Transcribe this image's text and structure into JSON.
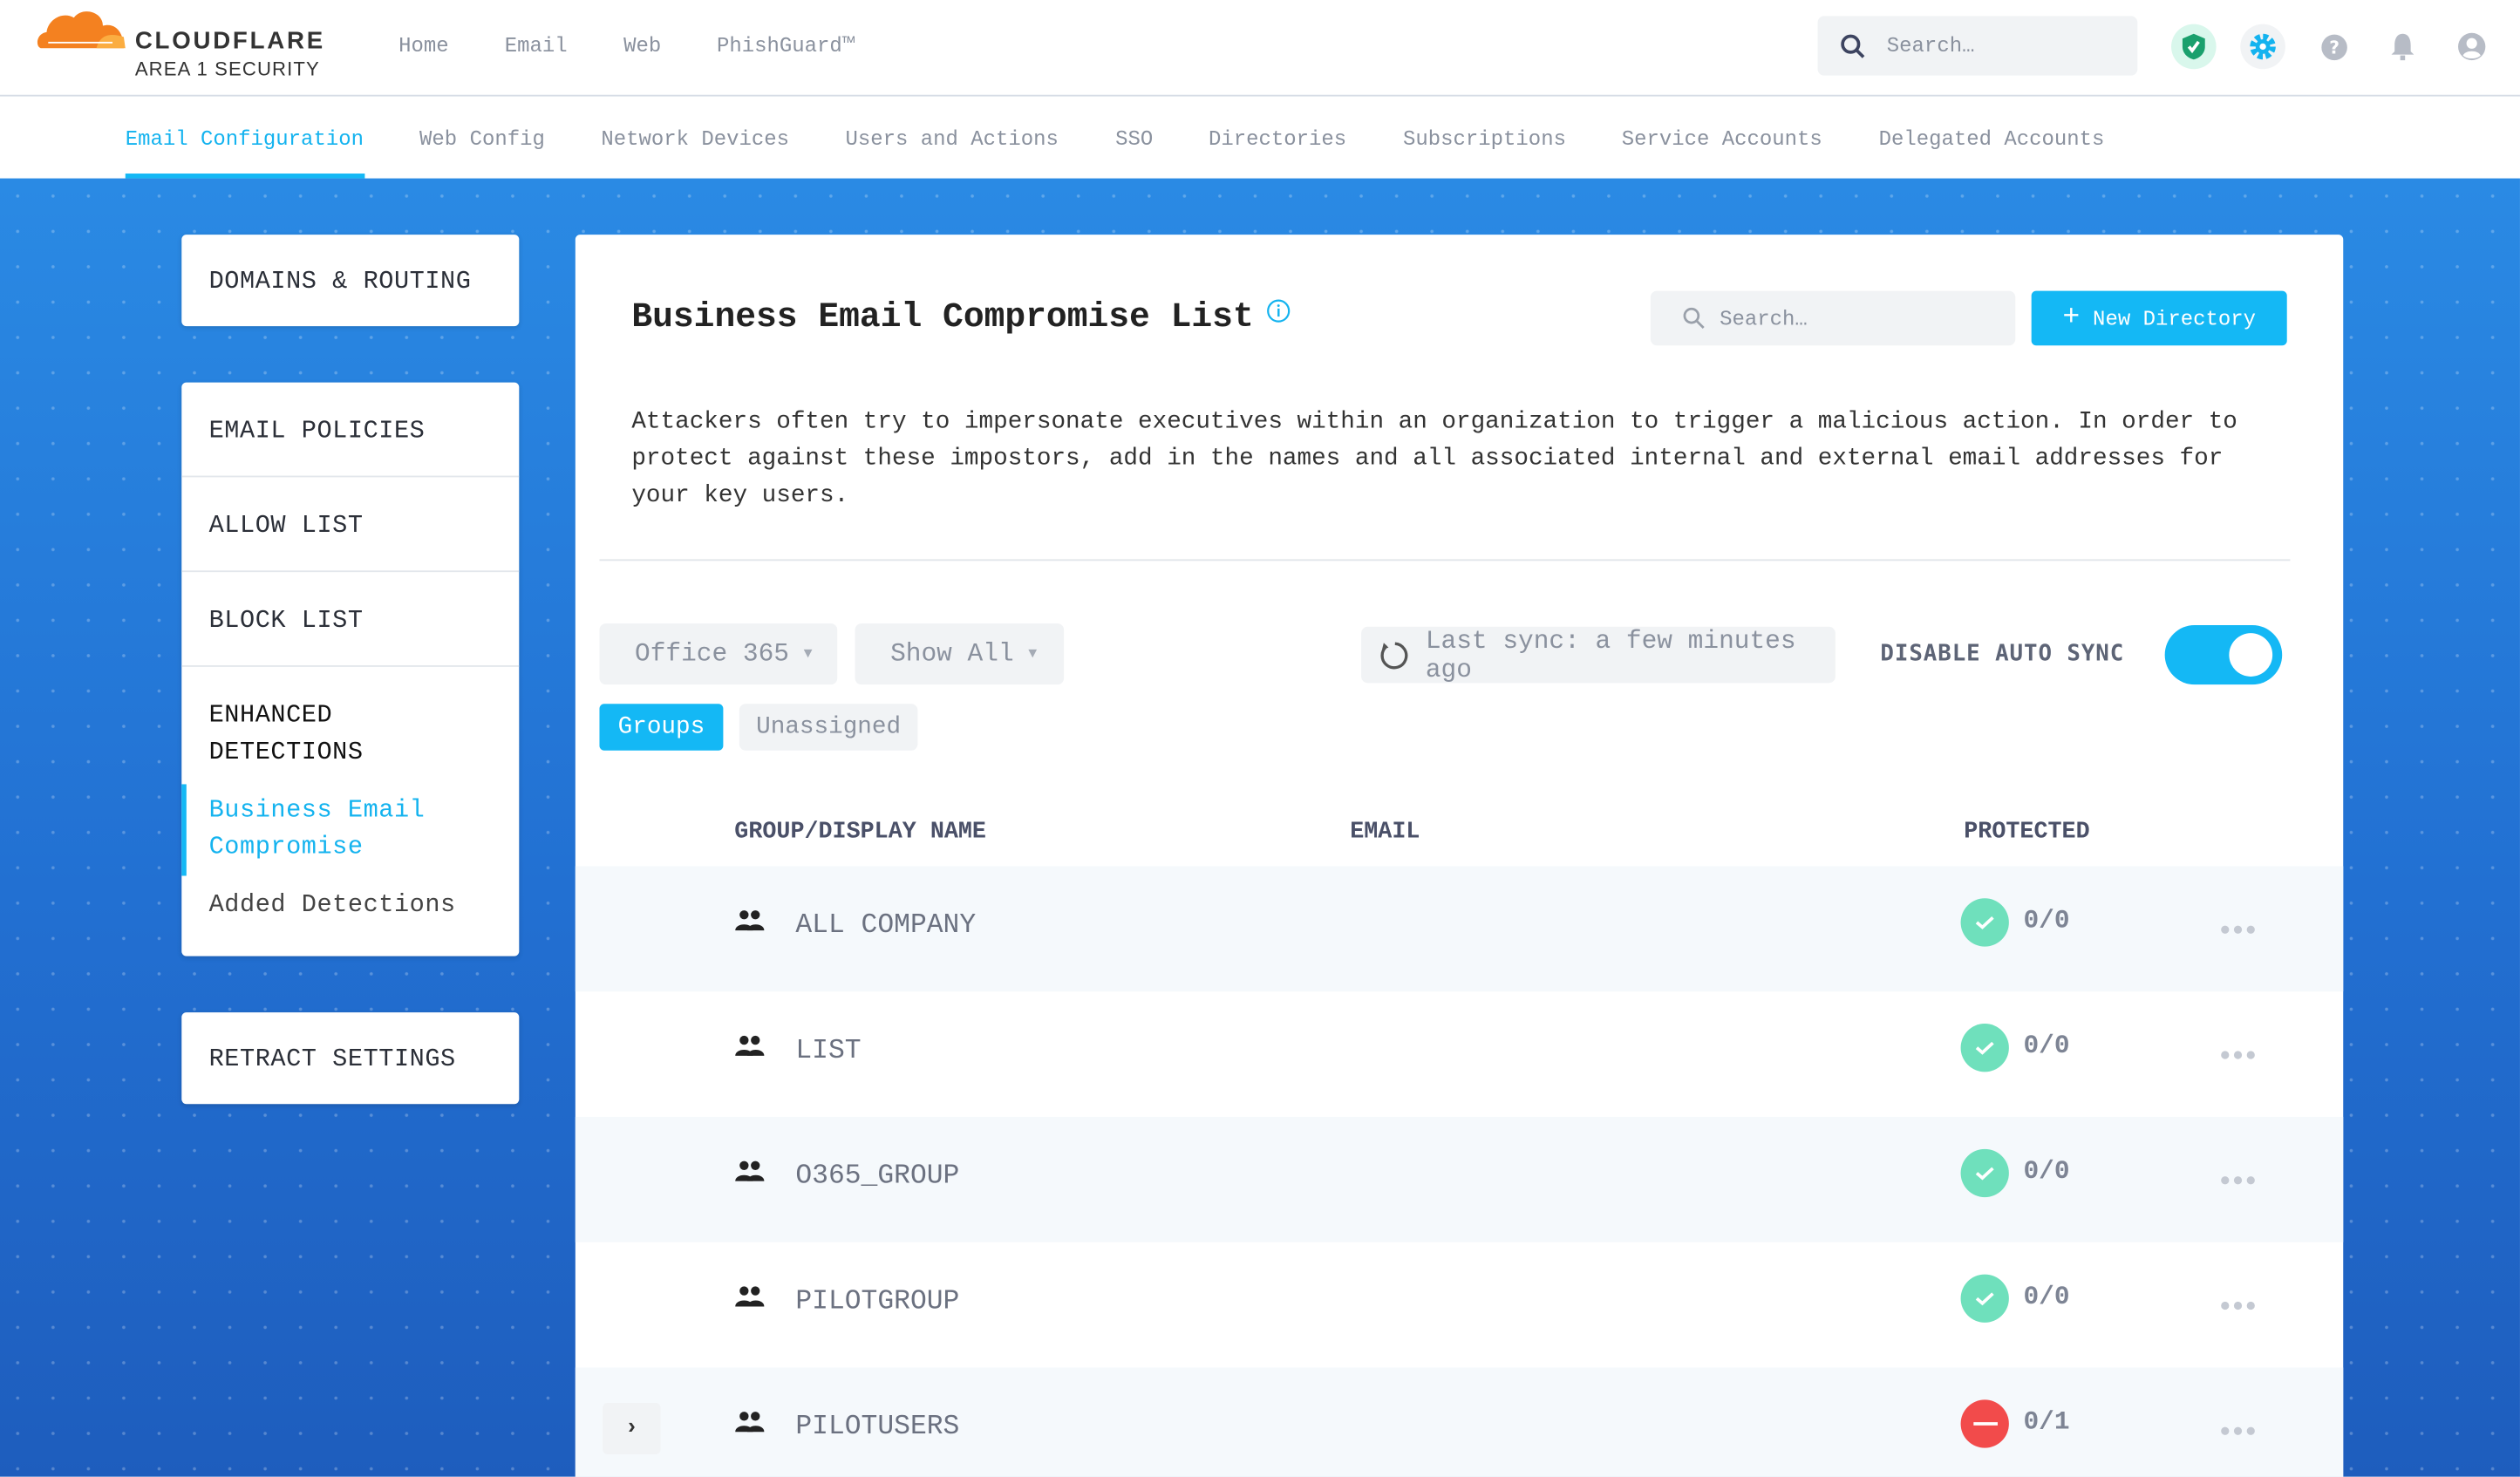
{
  "brand": {
    "name": "CLOUDFLARE",
    "sub": "AREA 1 SECURITY",
    "orange": "#f48120"
  },
  "topnav": [
    "Home",
    "Email",
    "Web",
    "PhishGuard™"
  ],
  "top_search": {
    "placeholder": "Search…"
  },
  "top_icons": [
    "shield-check-icon",
    "gear-icon",
    "help-icon",
    "bell-icon",
    "user-icon"
  ],
  "subnav": {
    "items": [
      "Email Configuration",
      "Web Config",
      "Network Devices",
      "Users and Actions",
      "SSO",
      "Directories",
      "Subscriptions",
      "Service Accounts",
      "Delegated Accounts"
    ],
    "active": 0
  },
  "sidebar": {
    "domains": "DOMAINS & ROUTING",
    "email_policies": "EMAIL POLICIES",
    "allow_list": "ALLOW LIST",
    "block_list": "BLOCK LIST",
    "enhanced_1": "ENHANCED",
    "enhanced_2": "DETECTIONS",
    "bec_1": "Business Email",
    "bec_2": "Compromise",
    "added": "Added Detections",
    "retract": "RETRACT SETTINGS"
  },
  "main": {
    "title": "Business Email Compromise List",
    "search_placeholder": "Search…",
    "new_button": "New Directory",
    "desc": [
      "Attackers often try to impersonate executives within an organization to trigger a malicious action. In order to",
      "protect against these impostors, add in the names and all associated internal and external email addresses for",
      "your key users."
    ],
    "source_select": "Office 365",
    "filter_select": "Show All",
    "last_sync": "Last sync: a few minutes ago",
    "auto_sync_label": "DISABLE AUTO SYNC",
    "auto_sync_on": true,
    "tabs": [
      "Groups",
      "Unassigned"
    ],
    "active_tab": 0,
    "columns": [
      "GROUP/DISPLAY NAME",
      "EMAIL",
      "PROTECTED"
    ],
    "rows": [
      {
        "name": "ALL COMPANY",
        "email": "",
        "protected": "0/0",
        "status": "ok"
      },
      {
        "name": "LIST",
        "email": "",
        "protected": "0/0",
        "status": "ok"
      },
      {
        "name": "O365_GROUP",
        "email": "",
        "protected": "0/0",
        "status": "ok"
      },
      {
        "name": "PILOTGROUP",
        "email": "",
        "protected": "0/0",
        "status": "ok"
      },
      {
        "name": "PILOTUSERS",
        "email": "",
        "protected": "0/1",
        "status": "blocked"
      }
    ]
  },
  "colors": {
    "accent": "#14b8f5",
    "ok": "#6fe0bc",
    "blocked": "#f24b4b"
  }
}
